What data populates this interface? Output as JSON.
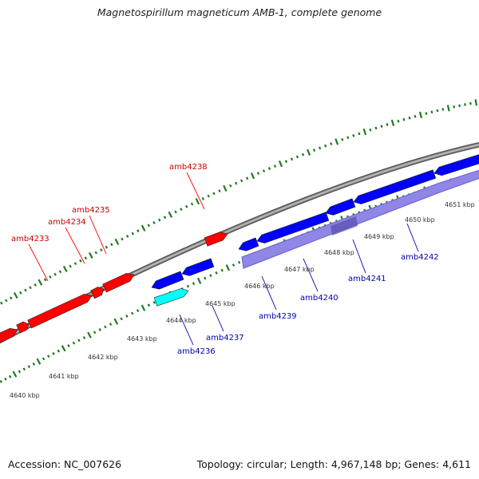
{
  "title": "Magnetospirillum magneticum AMB-1, complete genome",
  "footer": {
    "accession": "Accession: NC_007626",
    "summary": "Topology: circular; Length: 4,967,148 bp; Genes: 4,611"
  },
  "colors": {
    "forward_gene": "#ff0000",
    "reverse_gene": "#0000ff",
    "highlight_gene": "#00ffff",
    "feature_band": "#8f86e6",
    "backbone": "#8c8c8c",
    "tick": "#1f7a1f",
    "forward_label": "#cc0000",
    "reverse_label": "#0000aa"
  },
  "forward_labels": [
    {
      "text": "amb4233"
    },
    {
      "text": "amb4234"
    },
    {
      "text": "amb4235"
    },
    {
      "text": "amb4238"
    }
  ],
  "reverse_labels": [
    {
      "text": "amb4236"
    },
    {
      "text": "amb4237"
    },
    {
      "text": "amb4239"
    },
    {
      "text": "amb4240"
    },
    {
      "text": "amb4241"
    },
    {
      "text": "amb4242"
    }
  ],
  "scale_labels": [
    "4640 kbp",
    "4641 kbp",
    "4642 kbp",
    "4643 kbp",
    "4644 kbp",
    "4645 kbp",
    "4646 kbp",
    "4647 kbp",
    "4648 kbp",
    "4649 kbp",
    "4650 kbp",
    "4651 kbp"
  ]
}
